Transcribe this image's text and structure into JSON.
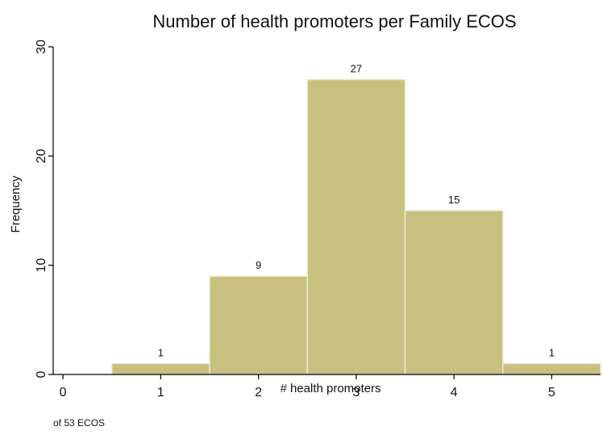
{
  "chart_data": {
    "type": "bar",
    "title": "Number of health promoters per Family ECOS",
    "xlabel": "# health promoters",
    "ylabel": "Frequency",
    "note": "of 53 ECOS",
    "x": [
      0,
      1,
      2,
      3,
      4,
      5
    ],
    "values": [
      0,
      1,
      9,
      27,
      15,
      1
    ],
    "value_labels": [
      "",
      "1",
      "9",
      "27",
      "15",
      "1"
    ],
    "xticks": [
      "0",
      "1",
      "2",
      "3",
      "4",
      "5"
    ],
    "yticks": [
      "0",
      "10",
      "20",
      "30"
    ],
    "xlim": [
      -0.1,
      5.5
    ],
    "ylim": [
      0,
      30
    ],
    "grid": false,
    "legend": "none",
    "bar_color": "#c8c07e",
    "bar_edge_color": "#ece8cf"
  }
}
